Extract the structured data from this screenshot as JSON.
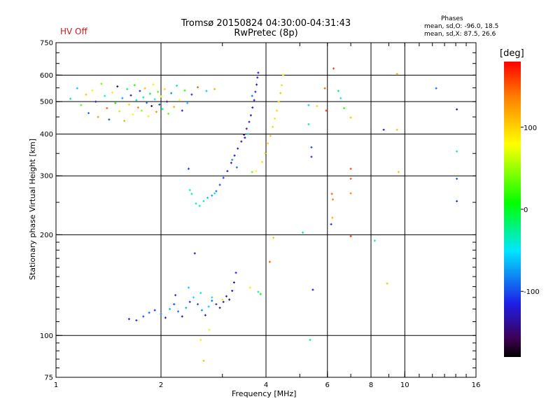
{
  "status": {
    "hv_label": "HV Off"
  },
  "phases": {
    "header": "Phases",
    "line_o": "mean, sd,O: -96.0, 18.5",
    "line_x": "mean, sd,X:  87.5, 26.6"
  },
  "colorbar": {
    "unit": "[deg]",
    "range": [
      -180,
      180
    ],
    "ticks": [
      {
        "value": 100,
        "label": "100"
      },
      {
        "value": 0,
        "label": "0"
      },
      {
        "value": -100,
        "label": "-100"
      }
    ]
  },
  "chart_data": {
    "type": "scatter",
    "title": "Tromsø 20150824 04:30:00-04:31:43",
    "subtitle": "RwPretec (8p)",
    "xlabel": "Frequency [MHz]",
    "ylabel": "Stationary phase Virtual Height [km]",
    "x_scale": "log",
    "y_scale": "log",
    "xlim": [
      1,
      16
    ],
    "ylim": [
      75,
      750
    ],
    "xticks": [
      1,
      2,
      4,
      6,
      8,
      10,
      16
    ],
    "yticks": [
      75,
      100,
      200,
      300,
      400,
      500,
      600,
      750
    ],
    "xgrid": [
      2,
      4,
      6,
      8,
      10
    ],
    "ygrid": [
      100,
      200,
      300,
      400,
      500,
      600
    ],
    "color_encoding": "phase in degrees",
    "clusters": [
      {
        "x_range": [
          1.2,
          2.4
        ],
        "y_range": [
          430,
          570
        ],
        "phase_range": [
          -180,
          160
        ]
      },
      {
        "x_range": [
          2.4,
          3.8
        ],
        "y_range": [
          240,
          610
        ],
        "phase_range": [
          -140,
          -40
        ]
      },
      {
        "x_range": [
          3.7,
          4.5
        ],
        "y_range": [
          310,
          610
        ],
        "phase_range": [
          60,
          120
        ]
      },
      {
        "x_range": [
          1.6,
          3.3
        ],
        "y_range": [
          110,
          155
        ],
        "phase_range": [
          -160,
          -30
        ]
      }
    ],
    "points": [
      {
        "x": 1.1,
        "y": 510,
        "p": -20
      },
      {
        "x": 1.15,
        "y": 548,
        "p": -60
      },
      {
        "x": 1.18,
        "y": 488,
        "p": 30
      },
      {
        "x": 1.22,
        "y": 525,
        "p": 110
      },
      {
        "x": 1.24,
        "y": 462,
        "p": -90
      },
      {
        "x": 1.27,
        "y": 540,
        "p": 70
      },
      {
        "x": 1.3,
        "y": 500,
        "p": -120
      },
      {
        "x": 1.32,
        "y": 450,
        "p": 130
      },
      {
        "x": 1.35,
        "y": 565,
        "p": 40
      },
      {
        "x": 1.38,
        "y": 520,
        "p": -40
      },
      {
        "x": 1.4,
        "y": 478,
        "p": 150
      },
      {
        "x": 1.42,
        "y": 442,
        "p": -100
      },
      {
        "x": 1.45,
        "y": 532,
        "p": 90
      },
      {
        "x": 1.48,
        "y": 495,
        "p": 10
      },
      {
        "x": 1.5,
        "y": 555,
        "p": -150
      },
      {
        "x": 1.52,
        "y": 468,
        "p": 60
      },
      {
        "x": 1.55,
        "y": 512,
        "p": -70
      },
      {
        "x": 1.57,
        "y": 438,
        "p": 120
      },
      {
        "x": 1.6,
        "y": 545,
        "p": -10
      },
      {
        "x": 1.62,
        "y": 490,
        "p": 100
      },
      {
        "x": 1.64,
        "y": 522,
        "p": -130
      },
      {
        "x": 1.66,
        "y": 458,
        "p": 80
      },
      {
        "x": 1.68,
        "y": 560,
        "p": 20
      },
      {
        "x": 1.7,
        "y": 505,
        "p": -60
      },
      {
        "x": 1.72,
        "y": 480,
        "p": 140
      },
      {
        "x": 1.74,
        "y": 538,
        "p": -110
      },
      {
        "x": 1.76,
        "y": 470,
        "p": 50
      },
      {
        "x": 1.78,
        "y": 515,
        "p": -30
      },
      {
        "x": 1.8,
        "y": 548,
        "p": 110
      },
      {
        "x": 1.82,
        "y": 496,
        "p": -90
      },
      {
        "x": 1.84,
        "y": 452,
        "p": 70
      },
      {
        "x": 1.86,
        "y": 528,
        "p": 0
      },
      {
        "x": 1.88,
        "y": 485,
        "p": -150
      },
      {
        "x": 1.9,
        "y": 562,
        "p": 90
      },
      {
        "x": 1.92,
        "y": 508,
        "p": -50
      },
      {
        "x": 1.94,
        "y": 466,
        "p": 130
      },
      {
        "x": 1.96,
        "y": 535,
        "p": 30
      },
      {
        "x": 1.98,
        "y": 490,
        "p": -100
      },
      {
        "x": 2.0,
        "y": 518,
        "p": 60
      },
      {
        "x": 2.02,
        "y": 475,
        "p": -20
      },
      {
        "x": 2.05,
        "y": 545,
        "p": 100
      },
      {
        "x": 2.08,
        "y": 500,
        "p": -140
      },
      {
        "x": 2.1,
        "y": 460,
        "p": 40
      },
      {
        "x": 2.14,
        "y": 530,
        "p": -80
      },
      {
        "x": 2.18,
        "y": 482,
        "p": 120
      },
      {
        "x": 2.22,
        "y": 558,
        "p": -30
      },
      {
        "x": 2.26,
        "y": 506,
        "p": 80
      },
      {
        "x": 2.3,
        "y": 470,
        "p": -120
      },
      {
        "x": 2.34,
        "y": 540,
        "p": 20
      },
      {
        "x": 2.38,
        "y": 495,
        "p": -60
      },
      {
        "x": 2.45,
        "y": 525,
        "p": -110
      },
      {
        "x": 2.55,
        "y": 552,
        "p": 150
      },
      {
        "x": 2.7,
        "y": 538,
        "p": -60
      },
      {
        "x": 2.85,
        "y": 545,
        "p": 120
      },
      {
        "x": 2.45,
        "y": 265,
        "p": -20
      },
      {
        "x": 2.52,
        "y": 248,
        "p": -40
      },
      {
        "x": 2.58,
        "y": 244,
        "p": -30
      },
      {
        "x": 2.65,
        "y": 252,
        "p": -50
      },
      {
        "x": 2.72,
        "y": 258,
        "p": -60
      },
      {
        "x": 2.8,
        "y": 262,
        "p": -70
      },
      {
        "x": 2.88,
        "y": 270,
        "p": -90
      },
      {
        "x": 2.95,
        "y": 282,
        "p": -100
      },
      {
        "x": 3.02,
        "y": 296,
        "p": -110
      },
      {
        "x": 3.1,
        "y": 310,
        "p": -115
      },
      {
        "x": 3.18,
        "y": 328,
        "p": -120
      },
      {
        "x": 3.25,
        "y": 345,
        "p": -125
      },
      {
        "x": 3.32,
        "y": 362,
        "p": -120
      },
      {
        "x": 3.4,
        "y": 380,
        "p": -125
      },
      {
        "x": 3.46,
        "y": 398,
        "p": -130
      },
      {
        "x": 3.52,
        "y": 415,
        "p": -120
      },
      {
        "x": 3.58,
        "y": 435,
        "p": -125
      },
      {
        "x": 3.62,
        "y": 455,
        "p": -115
      },
      {
        "x": 3.66,
        "y": 480,
        "p": -120
      },
      {
        "x": 3.7,
        "y": 505,
        "p": -125
      },
      {
        "x": 3.73,
        "y": 535,
        "p": -120
      },
      {
        "x": 3.76,
        "y": 562,
        "p": -130
      },
      {
        "x": 3.78,
        "y": 590,
        "p": -120
      },
      {
        "x": 3.8,
        "y": 610,
        "p": -125
      },
      {
        "x": 3.55,
        "y": 400,
        "p": -60
      },
      {
        "x": 3.48,
        "y": 390,
        "p": -140
      },
      {
        "x": 3.2,
        "y": 335,
        "p": -80
      },
      {
        "x": 2.85,
        "y": 266,
        "p": -45
      },
      {
        "x": 2.4,
        "y": 315,
        "p": -110
      },
      {
        "x": 2.42,
        "y": 272,
        "p": -50
      },
      {
        "x": 3.3,
        "y": 318,
        "p": -90
      },
      {
        "x": 3.65,
        "y": 520,
        "p": -90
      },
      {
        "x": 3.75,
        "y": 310,
        "p": 80
      },
      {
        "x": 3.9,
        "y": 330,
        "p": 95
      },
      {
        "x": 3.98,
        "y": 350,
        "p": 100
      },
      {
        "x": 4.05,
        "y": 375,
        "p": 105
      },
      {
        "x": 4.12,
        "y": 395,
        "p": 110
      },
      {
        "x": 4.18,
        "y": 420,
        "p": 100
      },
      {
        "x": 4.24,
        "y": 445,
        "p": 95
      },
      {
        "x": 4.3,
        "y": 470,
        "p": 100
      },
      {
        "x": 4.35,
        "y": 500,
        "p": 105
      },
      {
        "x": 4.4,
        "y": 530,
        "p": 110
      },
      {
        "x": 4.44,
        "y": 560,
        "p": 95
      },
      {
        "x": 4.48,
        "y": 600,
        "p": 100
      },
      {
        "x": 1.62,
        "y": 112,
        "p": -120
      },
      {
        "x": 1.7,
        "y": 111,
        "p": -110
      },
      {
        "x": 1.78,
        "y": 114,
        "p": -100
      },
      {
        "x": 1.85,
        "y": 117,
        "p": -90
      },
      {
        "x": 1.92,
        "y": 119,
        "p": -110
      },
      {
        "x": 2.0,
        "y": 116,
        "p": -80
      },
      {
        "x": 2.06,
        "y": 113,
        "p": -120
      },
      {
        "x": 2.12,
        "y": 120,
        "p": -60
      },
      {
        "x": 2.18,
        "y": 124,
        "p": -100
      },
      {
        "x": 2.24,
        "y": 118,
        "p": -90
      },
      {
        "x": 2.3,
        "y": 114,
        "p": -130
      },
      {
        "x": 2.36,
        "y": 121,
        "p": -70
      },
      {
        "x": 2.42,
        "y": 126,
        "p": -110
      },
      {
        "x": 2.48,
        "y": 130,
        "p": -50
      },
      {
        "x": 2.55,
        "y": 124,
        "p": -100
      },
      {
        "x": 2.62,
        "y": 119,
        "p": -80
      },
      {
        "x": 2.68,
        "y": 115,
        "p": -120
      },
      {
        "x": 2.74,
        "y": 122,
        "p": -60
      },
      {
        "x": 2.8,
        "y": 127,
        "p": -90
      },
      {
        "x": 2.88,
        "y": 124,
        "p": -110
      },
      {
        "x": 2.95,
        "y": 121,
        "p": -140
      },
      {
        "x": 3.02,
        "y": 126,
        "p": -130
      },
      {
        "x": 3.08,
        "y": 131,
        "p": -120
      },
      {
        "x": 3.14,
        "y": 128,
        "p": -150
      },
      {
        "x": 3.2,
        "y": 136,
        "p": -130
      },
      {
        "x": 3.24,
        "y": 144,
        "p": -140
      },
      {
        "x": 3.28,
        "y": 154,
        "p": -110
      },
      {
        "x": 2.5,
        "y": 176,
        "p": -120
      },
      {
        "x": 2.4,
        "y": 139,
        "p": -60
      },
      {
        "x": 2.6,
        "y": 134,
        "p": -40
      },
      {
        "x": 2.2,
        "y": 132,
        "p": -110
      },
      {
        "x": 2.75,
        "y": 104,
        "p": 70
      },
      {
        "x": 2.6,
        "y": 97,
        "p": 90
      },
      {
        "x": 2.65,
        "y": 84,
        "p": 110
      },
      {
        "x": 2.8,
        "y": 130,
        "p": -30
      },
      {
        "x": 3.0,
        "y": 128,
        "p": 70
      },
      {
        "x": 3.6,
        "y": 139,
        "p": 90
      },
      {
        "x": 3.8,
        "y": 135,
        "p": -30
      },
      {
        "x": 3.86,
        "y": 133,
        "p": 10
      },
      {
        "x": 4.1,
        "y": 166,
        "p": 150
      },
      {
        "x": 4.2,
        "y": 196,
        "p": 110
      },
      {
        "x": 3.65,
        "y": 308,
        "p": 40
      },
      {
        "x": 5.1,
        "y": 203,
        "p": -20
      },
      {
        "x": 5.3,
        "y": 488,
        "p": -60
      },
      {
        "x": 5.3,
        "y": 428,
        "p": -20
      },
      {
        "x": 5.4,
        "y": 365,
        "p": -100
      },
      {
        "x": 5.4,
        "y": 342,
        "p": -110
      },
      {
        "x": 5.45,
        "y": 137,
        "p": -120
      },
      {
        "x": 5.35,
        "y": 97,
        "p": -10
      },
      {
        "x": 5.6,
        "y": 485,
        "p": 100
      },
      {
        "x": 5.9,
        "y": 548,
        "p": 150
      },
      {
        "x": 5.95,
        "y": 470,
        "p": 160
      },
      {
        "x": 6.25,
        "y": 628,
        "p": 160
      },
      {
        "x": 6.18,
        "y": 265,
        "p": 150
      },
      {
        "x": 6.22,
        "y": 255,
        "p": 140
      },
      {
        "x": 6.2,
        "y": 225,
        "p": 120
      },
      {
        "x": 6.15,
        "y": 215,
        "p": -110
      },
      {
        "x": 6.45,
        "y": 538,
        "p": -20
      },
      {
        "x": 6.55,
        "y": 512,
        "p": -40
      },
      {
        "x": 6.7,
        "y": 478,
        "p": 20
      },
      {
        "x": 7.0,
        "y": 448,
        "p": 110
      },
      {
        "x": 7.0,
        "y": 315,
        "p": 160
      },
      {
        "x": 7.0,
        "y": 294,
        "p": 150
      },
      {
        "x": 7.0,
        "y": 266,
        "p": 140
      },
      {
        "x": 7.0,
        "y": 198,
        "p": 165
      },
      {
        "x": 8.2,
        "y": 192,
        "p": -30
      },
      {
        "x": 8.7,
        "y": 412,
        "p": -120
      },
      {
        "x": 8.9,
        "y": 143,
        "p": 110
      },
      {
        "x": 9.5,
        "y": 605,
        "p": 120
      },
      {
        "x": 9.5,
        "y": 412,
        "p": 110
      },
      {
        "x": 9.6,
        "y": 308,
        "p": 110
      },
      {
        "x": 12.3,
        "y": 548,
        "p": -90
      },
      {
        "x": 14.1,
        "y": 474,
        "p": -140
      },
      {
        "x": 14.1,
        "y": 355,
        "p": -30
      },
      {
        "x": 14.1,
        "y": 294,
        "p": -100
      },
      {
        "x": 14.1,
        "y": 252,
        "p": -110
      }
    ]
  }
}
